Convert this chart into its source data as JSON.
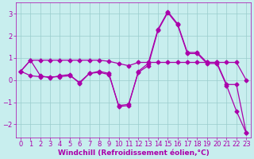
{
  "xlabel": "Windchill (Refroidissement éolien,°C)",
  "xlim": [
    -0.5,
    23.5
  ],
  "ylim": [
    -2.6,
    3.5
  ],
  "yticks": [
    -2,
    -1,
    0,
    1,
    2,
    3
  ],
  "xticks": [
    0,
    1,
    2,
    3,
    4,
    5,
    6,
    7,
    8,
    9,
    10,
    11,
    12,
    13,
    14,
    15,
    16,
    17,
    18,
    19,
    20,
    21,
    22,
    23
  ],
  "bg_color": "#c8eeee",
  "grid_color": "#99cccc",
  "line_color": "#aa00aa",
  "series1_x": [
    0,
    1,
    2,
    3,
    4,
    5,
    6,
    7,
    8,
    9,
    10,
    11,
    12,
    13,
    14,
    15,
    16,
    17,
    18,
    19,
    20,
    21,
    22,
    23
  ],
  "series1_y": [
    0.4,
    0.9,
    0.2,
    0.1,
    0.2,
    0.25,
    -0.15,
    0.3,
    0.4,
    0.3,
    -1.2,
    -1.15,
    0.4,
    0.75,
    2.3,
    3.1,
    2.55,
    1.25,
    1.25,
    0.8,
    0.8,
    -0.2,
    -0.2,
    -2.4
  ],
  "series2_x": [
    0,
    1,
    2,
    3,
    4,
    5,
    6,
    7,
    8,
    9,
    10,
    11,
    12,
    13,
    14,
    15,
    16,
    17,
    18,
    19,
    20,
    21,
    22,
    23
  ],
  "series2_y": [
    0.4,
    0.9,
    0.9,
    0.9,
    0.9,
    0.9,
    0.9,
    0.9,
    0.9,
    0.85,
    0.75,
    0.65,
    0.8,
    0.8,
    0.8,
    0.8,
    0.8,
    0.8,
    0.8,
    0.8,
    0.8,
    0.8,
    0.8,
    0.0
  ],
  "series3_x": [
    0,
    1,
    2,
    3,
    4,
    5,
    6,
    7,
    8,
    9,
    10,
    11,
    12,
    13,
    14,
    15,
    16,
    17,
    18,
    19,
    20,
    21,
    22,
    23
  ],
  "series3_y": [
    0.4,
    0.2,
    0.15,
    0.15,
    0.15,
    0.2,
    -0.1,
    0.3,
    0.35,
    0.25,
    -1.15,
    -1.1,
    0.35,
    0.65,
    2.25,
    3.05,
    2.5,
    1.2,
    1.2,
    0.75,
    0.75,
    -0.25,
    -1.4,
    -2.4
  ],
  "xlabel_color": "#aa00aa",
  "xlabel_fontsize": 6.5,
  "tick_fontsize": 6.0,
  "label_color": "#aa00aa"
}
